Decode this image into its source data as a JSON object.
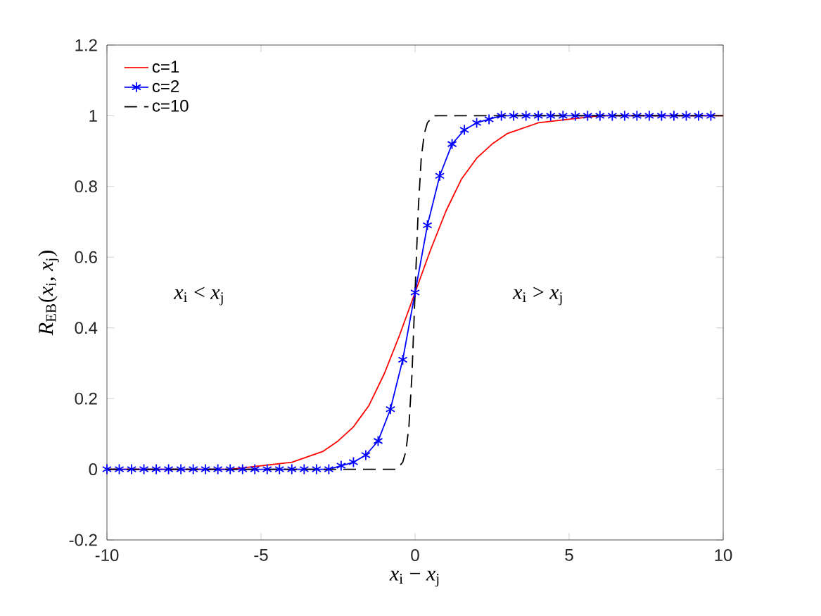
{
  "chart_data": {
    "type": "line",
    "xlabel": "*x*$_{i}$ − *x*$_{j}$",
    "ylabel": "*R*$_{EB}$(*x*$_{i}$, *x*$_{j}$)",
    "annotations": [
      "*x*$_{i}$ < *x*$_{j}$",
      "*x*$_{i}$ > *x*$_{j}$"
    ],
    "xlim": [
      -10,
      10
    ],
    "ylim": [
      -0.2,
      1.2
    ],
    "xticks": [
      -10,
      -5,
      0,
      5,
      10
    ],
    "yticks": [
      -0.2,
      0,
      0.2,
      0.4,
      0.6,
      0.8,
      1,
      1.2
    ],
    "legend": "top left",
    "grid": false,
    "series": [
      {
        "name": "c=1",
        "color": "#ff0000",
        "marker": "none",
        "line_style": "solid",
        "x": [
          -10,
          -6,
          -5,
          -4,
          -3,
          -2.5,
          -2,
          -1.5,
          -1,
          -0.5,
          0,
          0.5,
          1,
          1.5,
          2,
          2.5,
          3,
          4,
          5,
          6,
          10
        ],
        "values": [
          0,
          0,
          0.01,
          0.02,
          0.05,
          0.08,
          0.12,
          0.18,
          0.27,
          0.38,
          0.5,
          0.62,
          0.73,
          0.82,
          0.88,
          0.92,
          0.95,
          0.98,
          0.99,
          1,
          1
        ]
      },
      {
        "name": "c=2",
        "color": "#0000ff",
        "marker": "cross",
        "line_style": "solid",
        "x": [
          -10,
          -9.6,
          -9.2,
          -8.8,
          -8.4,
          -8,
          -7.6,
          -7.2,
          -6.8,
          -6.4,
          -6,
          -5.6,
          -5.2,
          -4.8,
          -4.4,
          -4,
          -3.6,
          -3.2,
          -2.8,
          -2.4,
          -2,
          -1.6,
          -1.2,
          -0.8,
          -0.4,
          0,
          0.4,
          0.8,
          1.2,
          1.6,
          2,
          2.4,
          2.8,
          3.2,
          3.6,
          4,
          4.4,
          4.8,
          5.2,
          5.6,
          6,
          6.4,
          6.8,
          7.2,
          7.6,
          8,
          8.4,
          8.8,
          9.2,
          9.6
        ],
        "values": [
          0,
          0,
          0,
          0,
          0,
          0,
          0,
          0,
          0,
          0,
          0,
          0,
          0,
          0,
          0,
          0,
          0,
          0,
          0,
          0.01,
          0.02,
          0.04,
          0.08,
          0.17,
          0.31,
          0.5,
          0.69,
          0.83,
          0.92,
          0.96,
          0.98,
          0.99,
          1,
          1,
          1,
          1,
          1,
          1,
          1,
          1,
          1,
          1,
          1,
          1,
          1,
          1,
          1,
          1,
          1,
          1
        ]
      },
      {
        "name": "c=10",
        "color": "#000000",
        "marker": "none",
        "line_style": "dashed",
        "x": [
          -10,
          -0.6,
          -0.4,
          -0.3,
          -0.2,
          -0.1,
          0,
          0.1,
          0.2,
          0.3,
          0.4,
          0.6,
          10
        ],
        "values": [
          0,
          0,
          0.02,
          0.05,
          0.12,
          0.27,
          0.5,
          0.73,
          0.88,
          0.95,
          0.98,
          1,
          1
        ]
      }
    ]
  }
}
